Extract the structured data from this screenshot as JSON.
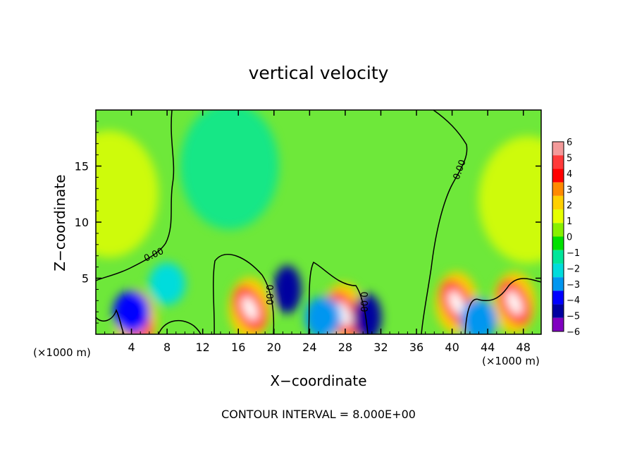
{
  "chart_data": {
    "type": "heatmap",
    "title": "vertical velocity",
    "xlabel": "X−coordinate",
    "ylabel": "Z−coordinate",
    "x_unit_left": "(×1000 m)",
    "x_unit_right": "(×1000 m)",
    "footer": "CONTOUR INTERVAL = 8.000E+00",
    "xlim": [
      0,
      50
    ],
    "ylim": [
      0,
      20
    ],
    "x_ticks": [
      4,
      8,
      12,
      16,
      20,
      24,
      28,
      32,
      36,
      40,
      44,
      48
    ],
    "x_tick_labels": [
      "4",
      "8",
      "12",
      "16",
      "20",
      "24",
      "28",
      "32",
      "36",
      "40",
      "44",
      "48"
    ],
    "y_ticks": [
      5,
      10,
      15
    ],
    "y_tick_labels": [
      "5",
      "10",
      "15"
    ],
    "contour_labels": [
      "0.00",
      "0.00",
      "0.00",
      "0.00"
    ],
    "colorbar": {
      "min": -6,
      "max": 6,
      "levels": [
        "6",
        "5",
        "4",
        "3",
        "2",
        "1",
        "0",
        "−1",
        "−2",
        "−3",
        "−4",
        "−5",
        "−6"
      ],
      "colors": [
        "#f39a9a",
        "#ff3a3a",
        "#ff0000",
        "#ff8a00",
        "#ffd000",
        "#e6ff00",
        "#88f000",
        "#00e000",
        "#00e69a",
        "#00dcdc",
        "#0096f0",
        "#0000ff",
        "#0000a0",
        "#8000c0"
      ]
    },
    "features": [
      {
        "x": 17.3,
        "z": 2.3,
        "value": 6,
        "kind": "updraft"
      },
      {
        "x": 27.8,
        "z": 1.8,
        "value": 5,
        "kind": "updraft"
      },
      {
        "x": 40.5,
        "z": 2.8,
        "value": 6,
        "kind": "updraft"
      },
      {
        "x": 47.0,
        "z": 2.8,
        "value": 6,
        "kind": "updraft"
      },
      {
        "x": 4.5,
        "z": 1.2,
        "value": 6,
        "kind": "updraft"
      },
      {
        "x": 21.5,
        "z": 4.0,
        "value": -5,
        "kind": "downdraft"
      },
      {
        "x": 30.5,
        "z": 1.5,
        "value": -5,
        "kind": "downdraft"
      },
      {
        "x": 4.0,
        "z": 2.0,
        "value": -4,
        "kind": "downdraft"
      },
      {
        "x": 8.0,
        "z": 4.5,
        "value": -2,
        "kind": "downdraft"
      },
      {
        "x": 43.0,
        "z": 1.3,
        "value": -3,
        "kind": "downdraft"
      },
      {
        "x": 25.5,
        "z": 1.5,
        "value": -3,
        "kind": "downdraft"
      },
      {
        "x": 1.5,
        "z": 12.5,
        "value": 1.5,
        "kind": "updraft"
      },
      {
        "x": 48.5,
        "z": 12.0,
        "value": 1.5,
        "kind": "updraft"
      },
      {
        "x": 15.0,
        "z": 15.0,
        "value": -1,
        "kind": "downdraft"
      }
    ]
  }
}
